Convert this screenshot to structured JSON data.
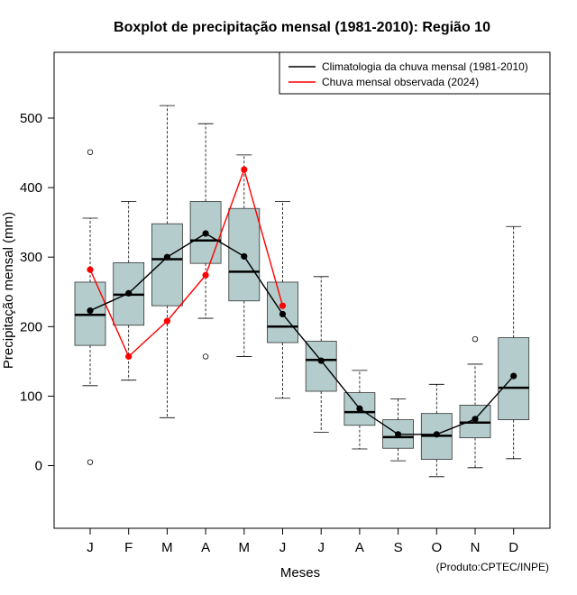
{
  "chart_data": {
    "type": "boxplot",
    "title": "Boxplot de precipitação mensal (1981-2010): Região 10",
    "xlabel": "Meses",
    "ylabel": "Precipitação mensal (mm)",
    "ylim": [
      -90,
      610
    ],
    "yticks": [
      0,
      100,
      200,
      300,
      400,
      500
    ],
    "categories": [
      "J",
      "F",
      "M",
      "A",
      "M",
      "J",
      "J",
      "A",
      "S",
      "O",
      "N",
      "D"
    ],
    "boxes": [
      {
        "whisker_low": 115,
        "q1": 173,
        "median": 217,
        "q3": 264,
        "whisker_high": 356,
        "outliers": [
          5,
          451
        ]
      },
      {
        "whisker_low": 123,
        "q1": 202,
        "median": 246,
        "q3": 292,
        "whisker_high": 380,
        "outliers": []
      },
      {
        "whisker_low": 69,
        "q1": 230,
        "median": 297,
        "q3": 348,
        "whisker_high": 518,
        "outliers": []
      },
      {
        "whisker_low": 212,
        "q1": 291,
        "median": 324,
        "q3": 380,
        "whisker_high": 492,
        "outliers": [
          157
        ]
      },
      {
        "whisker_low": 157,
        "q1": 237,
        "median": 279,
        "q3": 370,
        "whisker_high": 447,
        "outliers": []
      },
      {
        "whisker_low": 97,
        "q1": 177,
        "median": 200,
        "q3": 264,
        "whisker_high": 380,
        "outliers": []
      },
      {
        "whisker_low": 48,
        "q1": 107,
        "median": 152,
        "q3": 179,
        "whisker_high": 272,
        "outliers": []
      },
      {
        "whisker_low": 24,
        "q1": 58,
        "median": 77,
        "q3": 105,
        "whisker_high": 137,
        "outliers": []
      },
      {
        "whisker_low": 7,
        "q1": 25,
        "median": 41,
        "q3": 66,
        "whisker_high": 96,
        "outliers": []
      },
      {
        "whisker_low": -16,
        "q1": 9,
        "median": 43,
        "q3": 75,
        "whisker_high": 117,
        "outliers": []
      },
      {
        "whisker_low": -3,
        "q1": 40,
        "median": 62,
        "q3": 87,
        "whisker_high": 146,
        "outliers": [
          182
        ]
      },
      {
        "whisker_low": 10,
        "q1": 66,
        "median": 112,
        "q3": 184,
        "whisker_high": 344,
        "outliers": []
      }
    ],
    "series": [
      {
        "name": "Climatologia da chuva mensal (1981-2010)",
        "color": "#000000",
        "values": [
          223,
          248,
          300,
          334,
          301,
          218,
          151,
          82,
          45,
          45,
          67,
          129
        ]
      },
      {
        "name": "Chuva mensal observada (2024)",
        "color": "#ff0000",
        "values": [
          282,
          157,
          208,
          274,
          426,
          230,
          null,
          null,
          null,
          null,
          null,
          null
        ]
      }
    ],
    "legend_position": "top-right",
    "box_fill": "#b4cccc"
  },
  "credit": "(Produto:CPTEC/INPE)"
}
